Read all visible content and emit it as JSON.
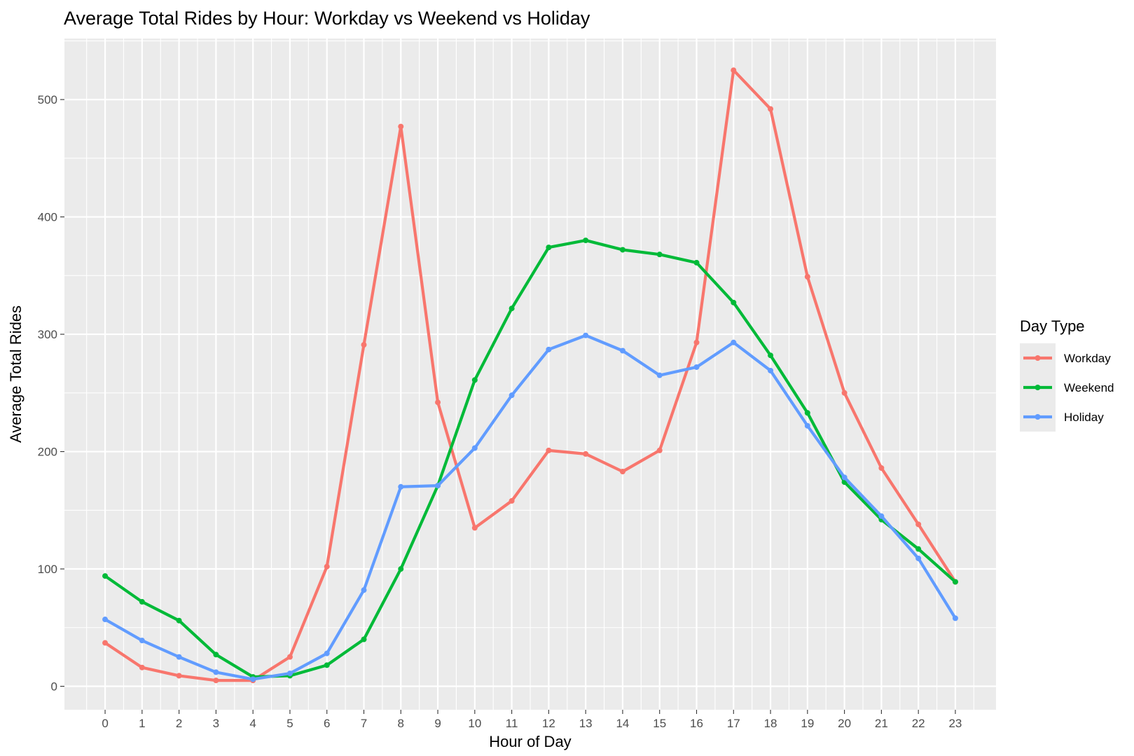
{
  "chart_data": {
    "type": "line",
    "title": "Average Total Rides by Hour: Workday vs Weekend vs Holiday",
    "xlabel": "Hour of Day",
    "ylabel": "Average Total Rides",
    "x": [
      0,
      1,
      2,
      3,
      4,
      5,
      6,
      7,
      8,
      9,
      10,
      11,
      12,
      13,
      14,
      15,
      16,
      17,
      18,
      19,
      20,
      21,
      22,
      23
    ],
    "x_tick_labels": [
      "0",
      "1",
      "2",
      "3",
      "4",
      "5",
      "6",
      "7",
      "8",
      "9",
      "10",
      "11",
      "12",
      "13",
      "14",
      "15",
      "16",
      "17",
      "18",
      "19",
      "20",
      "21",
      "22",
      "23"
    ],
    "y_ticks": [
      0,
      100,
      200,
      300,
      400,
      500
    ],
    "y_tick_labels": [
      "0",
      "100",
      "200",
      "300",
      "400",
      "500"
    ],
    "xlim": [
      -1.1,
      24.1
    ],
    "ylim": [
      -20,
      552
    ],
    "grid": true,
    "legend": {
      "title": "Day Type",
      "position": "right"
    },
    "series": [
      {
        "name": "Workday",
        "color": "#F8766D",
        "values": [
          37,
          16,
          9,
          5,
          5,
          25,
          102,
          291,
          477,
          242,
          135,
          158,
          201,
          198,
          183,
          201,
          293,
          525,
          492,
          349,
          250,
          186,
          138,
          89
        ]
      },
      {
        "name": "Weekend",
        "color": "#00BA38",
        "values": [
          94,
          72,
          56,
          27,
          8,
          9,
          18,
          40,
          100,
          171,
          261,
          322,
          374,
          380,
          372,
          368,
          361,
          327,
          282,
          233,
          174,
          142,
          117,
          89
        ]
      },
      {
        "name": "Holiday",
        "color": "#619CFF",
        "values": [
          57,
          39,
          25,
          12,
          6,
          11,
          28,
          82,
          170,
          171,
          203,
          248,
          287,
          299,
          286,
          265,
          272,
          293,
          269,
          222,
          178,
          145,
          109,
          58
        ]
      }
    ]
  }
}
